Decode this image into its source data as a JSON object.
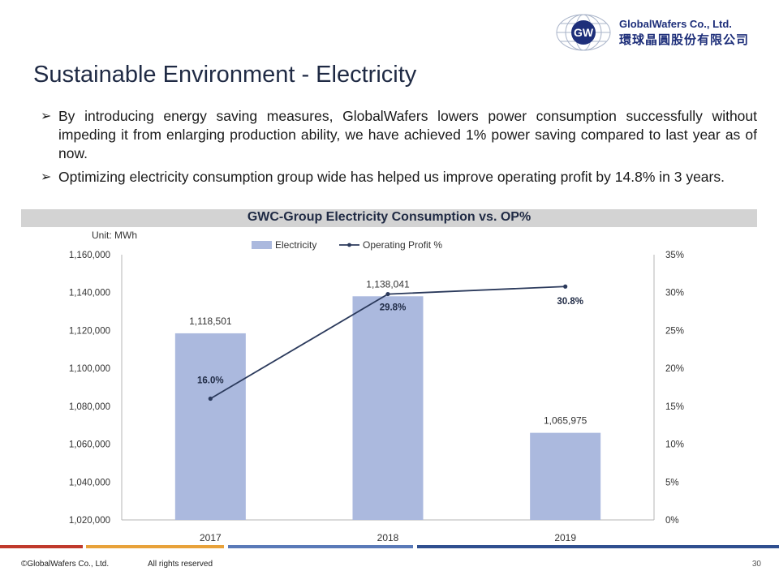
{
  "logo": {
    "mark": "GW",
    "company_en": "GlobalWafers Co., Ltd.",
    "company_cn": "環球晶圓股份有限公司"
  },
  "slide_title": "Sustainable Environment  - Electricity",
  "bullets": [
    "By introducing energy saving measures, GlobalWafers lowers power consumption successfully without impeding it from enlarging production ability, we have achieved 1% power saving compared to last year as of now.",
    "Optimizing electricity consumption group wide has helped us improve operating profit by 14.8% in 3 years."
  ],
  "chart_data": {
    "type": "bar",
    "title": "GWC-Group Electricity Consumption vs. OP%",
    "unit_label": "Unit: MWh",
    "categories": [
      "2017",
      "2018",
      "2019"
    ],
    "series": [
      {
        "name": "Electricity",
        "type": "bar",
        "axis": "left",
        "color": "#abb9de",
        "values": [
          1118501,
          1138041,
          1065975
        ],
        "labels": [
          "1,118,501",
          "1,138,041",
          "1,065,975"
        ]
      },
      {
        "name": "Operating Profit %",
        "type": "line",
        "axis": "right",
        "color": "#2b3a5c",
        "values": [
          16.0,
          29.8,
          30.8
        ],
        "labels": [
          "16.0%",
          "29.8%",
          "30.8%"
        ]
      }
    ],
    "y_left": {
      "min": 1020000,
      "max": 1160000,
      "ticks": [
        "1,020,000",
        "1,040,000",
        "1,060,000",
        "1,080,000",
        "1,100,000",
        "1,120,000",
        "1,140,000",
        "1,160,000"
      ]
    },
    "y_right": {
      "min": 0,
      "max": 35,
      "ticks": [
        "0%",
        "5%",
        "10%",
        "15%",
        "20%",
        "25%",
        "30%",
        "35%"
      ]
    },
    "legend_position": "top-center",
    "grid": false
  },
  "footer": {
    "copyright": "©GlobalWafers Co., Ltd.",
    "rights": "All rights reserved",
    "page": "30",
    "bar_colors": [
      "#c0392b",
      "#e8a23a",
      "#5a7ab8",
      "#2f4f8f"
    ]
  }
}
